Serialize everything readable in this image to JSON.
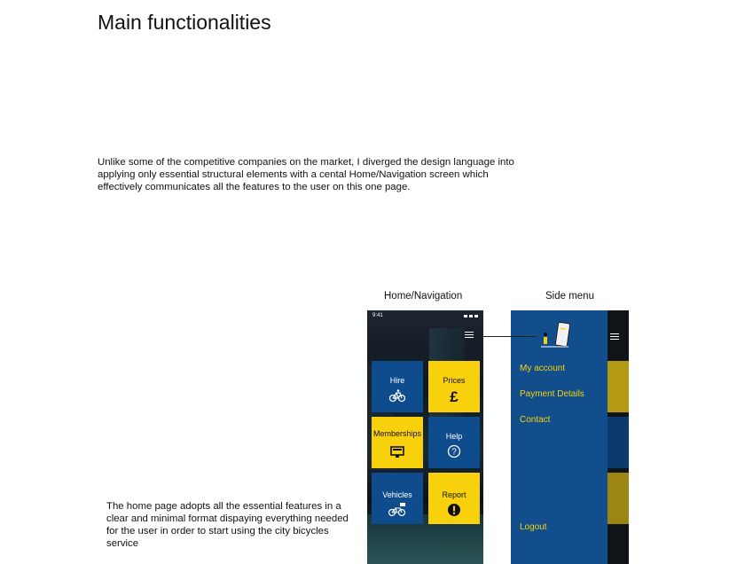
{
  "page": {
    "title": "Main functionalities",
    "intro": "Unlike some of the competitive companies on the market, I diverged the design language into applying only essential structural elements with a cental Home/Navigation screen which effectively communicates all the features to the user on this one page.",
    "caption": "The home page adopts all the essential features in a clear and minimal  format dispaying everything needed for the user in order to start using the city bicycles service"
  },
  "mockups": {
    "home_label": "Home/Navigation",
    "side_label": "Side menu"
  },
  "home": {
    "time": "9:41",
    "tiles": [
      {
        "label": "Hire",
        "color": "blue",
        "icon": "bicycle-icon"
      },
      {
        "label": "Prices",
        "color": "yellow",
        "icon": "pound-icon"
      },
      {
        "label": "Memberships",
        "color": "yellow",
        "icon": "card-icon"
      },
      {
        "label": "Help",
        "color": "blue",
        "icon": "help-icon"
      },
      {
        "label": "Vehicles",
        "color": "blue",
        "icon": "vehicles-icon"
      },
      {
        "label": "Report",
        "color": "yellow",
        "icon": "alert-icon"
      }
    ]
  },
  "side_menu": {
    "items": [
      "My account",
      "Payment Details",
      "Contact"
    ],
    "logout": "Logout"
  },
  "colors": {
    "blue": "#0f4c8d",
    "yellow": "#f8d10c"
  }
}
